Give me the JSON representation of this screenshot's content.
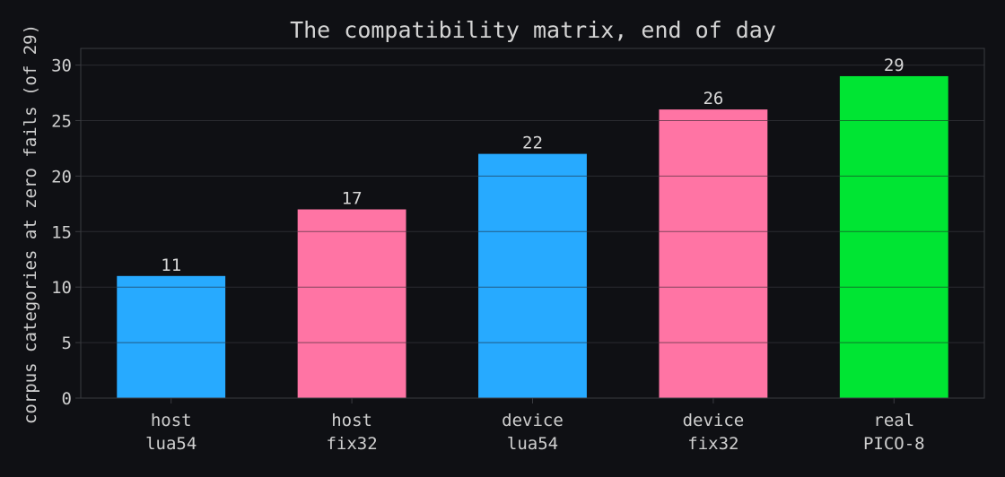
{
  "chart_data": {
    "type": "bar",
    "title": "The compatibility matrix, end of day",
    "ylabel": "corpus categories at zero fails (of 29)",
    "xlabel": "",
    "categories": [
      [
        "host",
        "lua54"
      ],
      [
        "host",
        "fix32"
      ],
      [
        "device",
        "lua54"
      ],
      [
        "device",
        "fix32"
      ],
      [
        "real",
        "PICO-8"
      ]
    ],
    "values": [
      11,
      17,
      22,
      26,
      29
    ],
    "bar_colors": [
      "#27aaff",
      "#ff74a4",
      "#27aaff",
      "#ff74a4",
      "#00e533"
    ],
    "ylim": [
      0,
      31.5
    ],
    "yticks": [
      0,
      5,
      10,
      15,
      20,
      25,
      30
    ],
    "grid": true,
    "legend": "none",
    "colors": {
      "background": "#0f1014",
      "grid": "#2a2b30",
      "axis": "#3a3b40",
      "text": "#cfcfcf"
    }
  }
}
